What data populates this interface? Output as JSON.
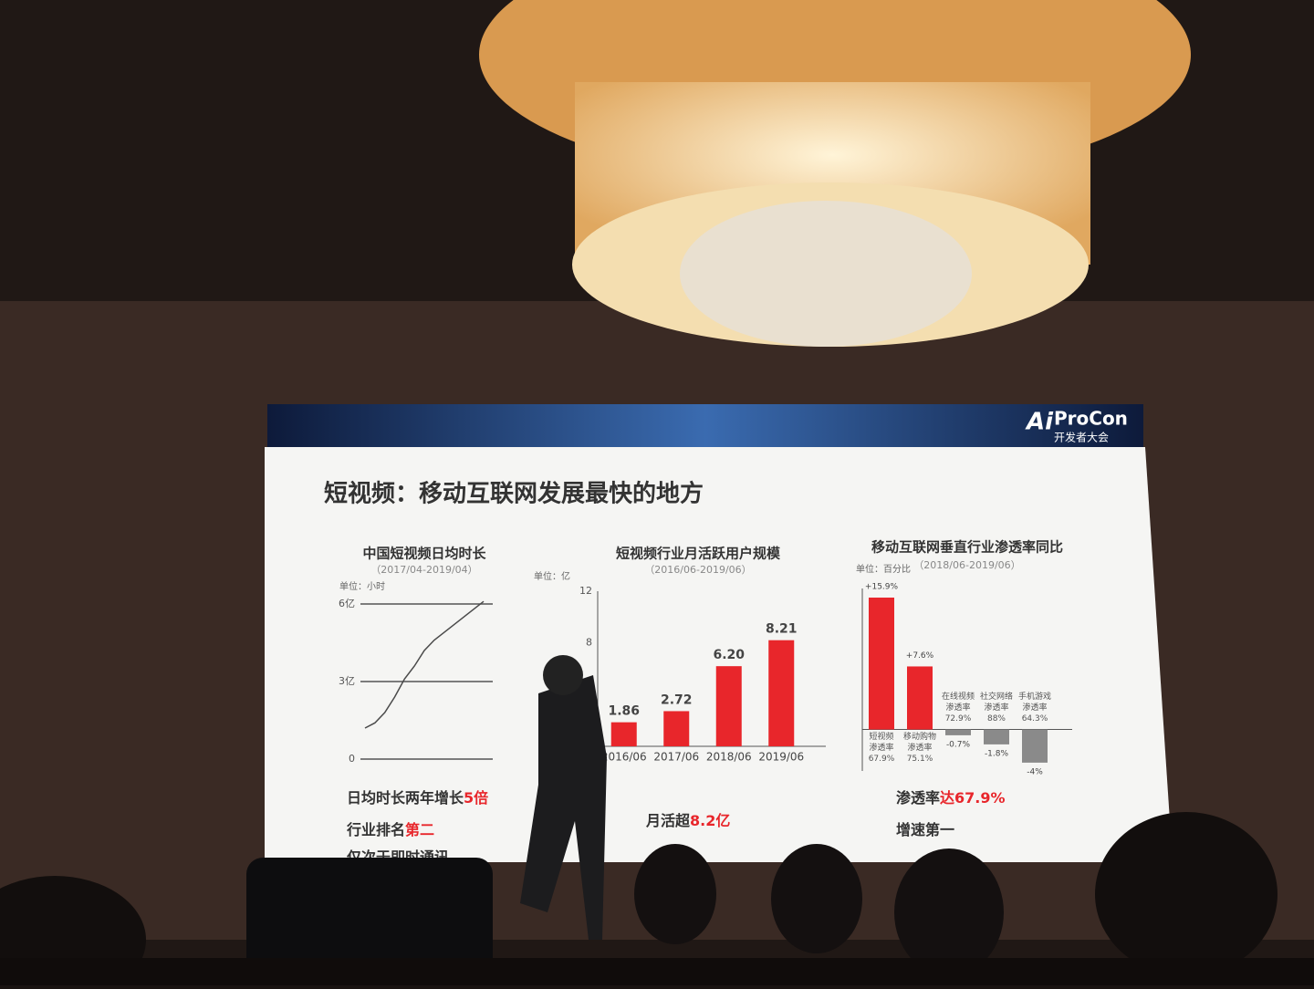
{
  "slide": {
    "title": "短视频：移动互联网发展最快的地方",
    "logo": "ProCon",
    "logo_ai": "Ai",
    "logo_sub": "开发者大会",
    "captions": [
      [
        {
          "text": "日均时长两年增长"
        },
        {
          "text": "5倍",
          "highlight": true
        }
      ],
      [
        {
          "text": "行业排名"
        },
        {
          "text": "第二",
          "highlight": true
        }
      ],
      [
        {
          "text": "仅次于即时通讯"
        }
      ],
      [
        {
          "text": "月活超"
        },
        {
          "text": "8.2亿",
          "highlight": true
        }
      ],
      [
        {
          "text": "渗透率"
        },
        {
          "text": "达67.9%",
          "highlight": true
        }
      ],
      [
        {
          "text": "增速第一"
        }
      ]
    ]
  },
  "chart_data": [
    {
      "type": "line",
      "title": "中国短视频日均时长",
      "subtitle": "（2017/04-2019/04）",
      "unit": "单位：小时",
      "categories": [
        null,
        null,
        null,
        null,
        null,
        null,
        null,
        null,
        null,
        null,
        null,
        null,
        null
      ],
      "values": [
        1.2,
        1.4,
        1.8,
        2.4,
        3.1,
        3.6,
        4.2,
        4.6,
        4.9,
        5.2,
        5.5,
        5.8,
        6.1
      ],
      "color": "#4a4a4a",
      "ylim": [
        0,
        6
      ],
      "yticks": [
        0,
        {
          "value": 3,
          "label": "3亿"
        },
        {
          "value": 6,
          "label": "6亿"
        }
      ],
      "grid": true
    },
    {
      "type": "bar",
      "title": "短视频行业月活跃用户规模",
      "subtitle": "（2016/06-2019/06）",
      "unit": "单位：亿",
      "categories": [
        "2016/06",
        "2017/06",
        "2018/06",
        "2019/06"
      ],
      "values": [
        1.86,
        2.72,
        6.2,
        8.21
      ],
      "value_labels": [
        "1.86",
        "2.72",
        "6.20",
        "8.21"
      ],
      "color": "#e8262b",
      "ylim": [
        0,
        12
      ],
      "yticks": [
        8,
        12
      ]
    },
    {
      "type": "bar",
      "title": "移动互联网垂直行业渗透率同比",
      "subtitle": "（2018/06-2019/06）",
      "unit": "单位：百分比",
      "categories": [
        [
          "短视频",
          "渗透率",
          "67.9%"
        ],
        [
          "移动购物",
          "渗透率",
          "75.1%"
        ],
        [
          "在线视频",
          "渗透率",
          "72.9%"
        ],
        [
          "社交网络",
          "渗透率",
          "88%"
        ],
        [
          "手机游戏",
          "渗透率",
          "64.3%"
        ]
      ],
      "values": [
        15.9,
        7.6,
        -0.7,
        -1.8,
        -4
      ],
      "value_labels": [
        "+15.9%",
        "+7.6%",
        "-0.7%",
        "-1.8%",
        "-4%"
      ],
      "color": "#e8262b",
      "negative_color": "#8a8a8a",
      "ylim": [
        -5,
        17
      ]
    }
  ]
}
